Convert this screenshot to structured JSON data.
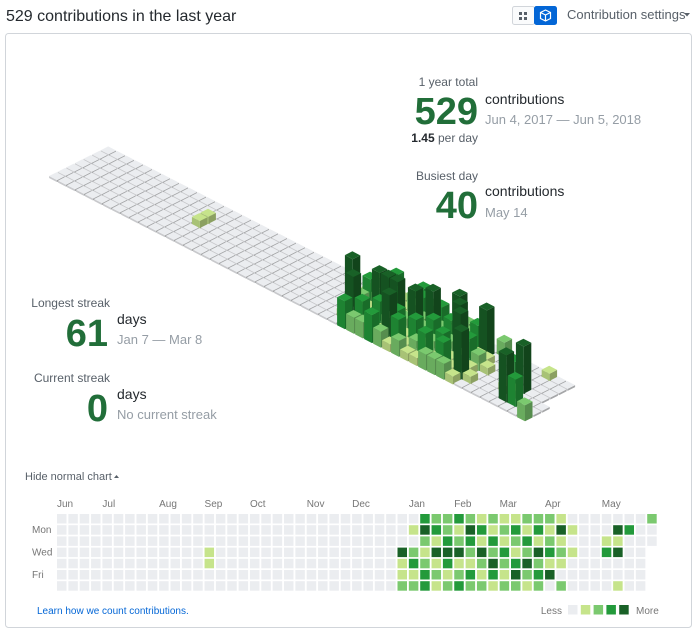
{
  "header": {
    "title": "529 contributions in the last year",
    "settings": "Contribution settings"
  },
  "stats": {
    "year_total": {
      "label": "1 year total",
      "value": 529,
      "unit": "contributions",
      "range": "Jun 4, 2017 — Jun 5, 2018",
      "per_day": 1.45,
      "per_day_label": "per day"
    },
    "busiest_day": {
      "label": "Busiest day",
      "value": 40,
      "unit": "contributions",
      "date": "May 14"
    },
    "longest_streak": {
      "label": "Longest streak",
      "value": 61,
      "unit": "days",
      "range": "Jan 7 — Mar 8"
    },
    "current_streak": {
      "label": "Current streak",
      "value": 0,
      "unit": "days",
      "range": "No current streak"
    }
  },
  "calendar": {
    "toggle": "Hide normal chart",
    "months": [
      "Jun",
      "Jul",
      "Aug",
      "Sep",
      "Oct",
      "Nov",
      "Dec",
      "Jan",
      "Feb",
      "Mar",
      "Apr",
      "May"
    ],
    "day_labels": [
      "Mon",
      "Wed",
      "Fri"
    ],
    "colors": [
      "#ebedf0",
      "#c6e48b",
      "#7bc96f",
      "#239a3b",
      "#196127"
    ],
    "levels": [
      [
        0,
        0,
        0,
        0,
        0,
        0,
        0
      ],
      [
        0,
        0,
        0,
        0,
        0,
        0,
        0
      ],
      [
        0,
        0,
        0,
        0,
        0,
        0,
        0
      ],
      [
        0,
        0,
        0,
        0,
        0,
        0,
        0
      ],
      [
        0,
        0,
        0,
        0,
        0,
        0,
        0
      ],
      [
        0,
        0,
        0,
        0,
        0,
        0,
        0
      ],
      [
        0,
        0,
        0,
        0,
        0,
        0,
        0
      ],
      [
        0,
        0,
        0,
        0,
        0,
        0,
        0
      ],
      [
        0,
        0,
        0,
        0,
        0,
        0,
        0
      ],
      [
        0,
        0,
        0,
        0,
        0,
        0,
        0
      ],
      [
        0,
        0,
        0,
        0,
        0,
        0,
        0
      ],
      [
        0,
        0,
        0,
        0,
        0,
        0,
        0
      ],
      [
        0,
        0,
        0,
        0,
        0,
        0,
        0
      ],
      [
        0,
        0,
        0,
        1,
        1,
        0,
        0
      ],
      [
        0,
        0,
        0,
        0,
        0,
        0,
        0
      ],
      [
        0,
        0,
        0,
        0,
        0,
        0,
        0
      ],
      [
        0,
        0,
        0,
        0,
        0,
        0,
        0
      ],
      [
        0,
        0,
        0,
        0,
        0,
        0,
        0
      ],
      [
        0,
        0,
        0,
        0,
        0,
        0,
        0
      ],
      [
        0,
        0,
        0,
        0,
        0,
        0,
        0
      ],
      [
        0,
        0,
        0,
        0,
        0,
        0,
        0
      ],
      [
        0,
        0,
        0,
        0,
        0,
        0,
        0
      ],
      [
        0,
        0,
        0,
        0,
        0,
        0,
        0
      ],
      [
        0,
        0,
        0,
        0,
        0,
        0,
        0
      ],
      [
        0,
        0,
        0,
        0,
        0,
        0,
        0
      ],
      [
        0,
        0,
        0,
        0,
        0,
        0,
        0
      ],
      [
        0,
        0,
        0,
        0,
        0,
        0,
        0
      ],
      [
        0,
        0,
        0,
        0,
        0,
        0,
        0
      ],
      [
        0,
        0,
        0,
        0,
        0,
        0,
        0
      ],
      [
        0,
        0,
        0,
        0,
        0,
        0,
        0
      ],
      [
        0,
        0,
        0,
        4,
        1,
        1,
        2
      ],
      [
        0,
        1,
        0,
        2,
        3,
        1,
        2
      ],
      [
        3,
        4,
        2,
        1,
        2,
        3,
        3
      ],
      [
        2,
        3,
        1,
        4,
        1,
        2,
        1
      ],
      [
        2,
        2,
        3,
        4,
        3,
        1,
        2
      ],
      [
        3,
        1,
        2,
        4,
        1,
        2,
        3
      ],
      [
        2,
        4,
        3,
        2,
        1,
        3,
        2
      ],
      [
        1,
        3,
        1,
        4,
        2,
        1,
        2
      ],
      [
        2,
        1,
        3,
        2,
        4,
        3,
        1
      ],
      [
        1,
        2,
        1,
        3,
        2,
        1,
        2
      ],
      [
        1,
        3,
        2,
        1,
        3,
        4,
        2
      ],
      [
        2,
        1,
        3,
        2,
        4,
        2,
        1
      ],
      [
        2,
        3,
        1,
        4,
        2,
        3,
        2
      ],
      [
        2,
        1,
        2,
        3,
        1,
        4,
        0
      ],
      [
        1,
        4,
        1,
        2,
        1,
        0,
        2
      ],
      [
        0,
        1,
        0,
        1,
        0,
        0,
        0
      ],
      [
        0,
        0,
        0,
        0,
        0,
        0,
        0
      ],
      [
        0,
        0,
        0,
        0,
        0,
        0,
        0
      ],
      [
        0,
        0,
        1,
        3,
        0,
        0,
        0
      ],
      [
        0,
        4,
        1,
        4,
        0,
        0,
        1
      ],
      [
        0,
        3,
        0,
        0,
        0,
        0,
        0
      ],
      [
        0,
        0,
        0,
        0,
        0,
        0,
        0
      ],
      [
        2,
        0,
        0
      ]
    ],
    "footer_link": "Learn how we count contributions.",
    "legend_less": "Less",
    "legend_more": "More"
  }
}
